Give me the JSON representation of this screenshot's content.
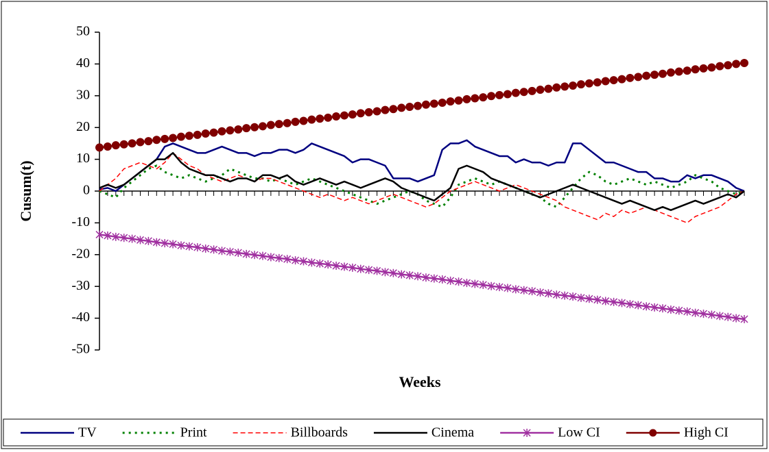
{
  "chart_data": {
    "type": "line",
    "ylabel": "Cusum(t)",
    "xlabel": "Weeks",
    "ylim": [
      -50,
      50
    ],
    "yticks": [
      -50,
      -40,
      -30,
      -20,
      -10,
      0,
      10,
      20,
      30,
      40,
      50
    ],
    "categories": [
      null,
      null,
      null,
      null,
      null,
      null,
      null,
      null,
      null,
      null,
      null,
      null,
      null,
      null,
      null,
      null,
      null,
      null,
      null,
      null,
      null,
      null,
      null,
      null,
      null,
      null,
      null,
      null,
      null,
      null,
      null,
      null,
      null,
      null,
      null,
      null,
      null,
      null,
      null,
      null,
      null,
      null,
      null,
      null,
      null,
      null,
      null,
      null,
      null,
      null,
      null,
      null,
      null,
      null,
      null,
      null,
      null,
      null,
      null,
      null,
      null,
      null,
      null,
      null,
      null,
      null,
      null,
      null,
      null,
      null,
      null,
      null,
      null,
      null,
      null,
      null,
      null,
      null,
      null,
      null
    ],
    "legend": "bottom",
    "series": [
      {
        "name": "TV",
        "color": "#000080",
        "dash": "solid",
        "marker": "none",
        "values": [
          0.5,
          1,
          0,
          2,
          4,
          6,
          8,
          10,
          14,
          15,
          14,
          13,
          12,
          12,
          13,
          14,
          13,
          12,
          12,
          11,
          12,
          12,
          13,
          13,
          12,
          13,
          15,
          14,
          13,
          12,
          11,
          9,
          10,
          10,
          9,
          8,
          4,
          4,
          4,
          3,
          4,
          5,
          13,
          15,
          15,
          16,
          14,
          13,
          12,
          11,
          11,
          9,
          10,
          9,
          9,
          8,
          9,
          9,
          15,
          15,
          13,
          11,
          9,
          9,
          8,
          7,
          6,
          6,
          4,
          4,
          3,
          3,
          5,
          4,
          5,
          5,
          4,
          3,
          1,
          0
        ]
      },
      {
        "name": "Print",
        "color": "#008000",
        "dash": "dotted",
        "marker": "none",
        "values": [
          0,
          -1,
          -2,
          1,
          3,
          5,
          7,
          8,
          6,
          5,
          4,
          5,
          4,
          3,
          4,
          5,
          7,
          6,
          5,
          4,
          4,
          3,
          4,
          3,
          2,
          3,
          4,
          3,
          2,
          1,
          0,
          -1,
          -2,
          -3,
          -4,
          -3,
          -2,
          -1,
          0,
          -1,
          -3,
          -4,
          -5,
          -2,
          2,
          3,
          4,
          3,
          2,
          3,
          2,
          1,
          0,
          -1,
          -2,
          -4,
          -5,
          -2,
          1,
          4,
          6,
          5,
          3,
          2,
          3,
          4,
          3,
          2,
          3,
          2,
          1,
          2,
          3,
          5,
          4,
          3,
          1,
          0,
          -1,
          0
        ]
      },
      {
        "name": "Billboards",
        "color": "#ff0000",
        "dash": "dashed",
        "marker": "none",
        "values": [
          0,
          2,
          4,
          7,
          8,
          9,
          8,
          7,
          9,
          12,
          10,
          8,
          7,
          5,
          4,
          3,
          4,
          5,
          4,
          3,
          4,
          4,
          3,
          2,
          1,
          0,
          -1,
          -2,
          -1,
          -2,
          -3,
          -2,
          -3,
          -4,
          -3,
          -2,
          -1,
          -2,
          -3,
          -4,
          -5,
          -4,
          -2,
          0,
          1,
          2,
          3,
          2,
          1,
          0,
          1,
          2,
          1,
          0,
          -1,
          -2,
          -3,
          -5,
          -6,
          -7,
          -8,
          -9,
          -7,
          -8,
          -6,
          -7,
          -6,
          -5,
          -6,
          -7,
          -8,
          -9,
          -10,
          -8,
          -7,
          -6,
          -5,
          -3,
          -1,
          0
        ]
      },
      {
        "name": "Cinema",
        "color": "#000000",
        "dash": "solid",
        "marker": "none",
        "values": [
          1,
          2,
          1,
          2,
          4,
          6,
          8,
          10,
          10,
          12,
          9,
          7,
          6,
          5,
          5,
          4,
          3,
          4,
          4,
          3,
          5,
          5,
          4,
          5,
          3,
          2,
          3,
          4,
          3,
          2,
          3,
          2,
          1,
          2,
          3,
          4,
          3,
          1,
          0,
          -1,
          -2,
          -3,
          -1,
          1,
          7,
          8,
          7,
          6,
          4,
          3,
          2,
          1,
          0,
          -1,
          -2,
          -1,
          0,
          1,
          2,
          1,
          0,
          -1,
          -2,
          -3,
          -4,
          -3,
          -4,
          -5,
          -6,
          -5,
          -6,
          -5,
          -4,
          -3,
          -4,
          -3,
          -2,
          -1,
          -2,
          0
        ]
      },
      {
        "name": "Low CI",
        "color": "#a030a0",
        "dash": "solid",
        "marker": "asterisk",
        "values": [
          -13.7,
          -14.0,
          -14.4,
          -14.7,
          -15.0,
          -15.4,
          -15.7,
          -16.1,
          -16.4,
          -16.7,
          -17.1,
          -17.4,
          -17.7,
          -18.1,
          -18.4,
          -18.8,
          -19.1,
          -19.4,
          -19.8,
          -20.1,
          -20.4,
          -20.8,
          -21.1,
          -21.4,
          -21.8,
          -22.1,
          -22.5,
          -22.8,
          -23.1,
          -23.5,
          -23.8,
          -24.1,
          -24.5,
          -24.8,
          -25.1,
          -25.5,
          -25.8,
          -26.2,
          -26.5,
          -26.8,
          -27.2,
          -27.5,
          -27.8,
          -28.2,
          -28.5,
          -28.9,
          -29.2,
          -29.5,
          -29.9,
          -30.2,
          -30.5,
          -30.9,
          -31.2,
          -31.5,
          -31.9,
          -32.2,
          -32.6,
          -32.9,
          -33.2,
          -33.6,
          -33.9,
          -34.2,
          -34.6,
          -34.9,
          -35.2,
          -35.6,
          -35.9,
          -36.3,
          -36.6,
          -36.9,
          -37.3,
          -37.6,
          -37.9,
          -38.3,
          -38.6,
          -38.9,
          -39.3,
          -39.6,
          -40.0,
          -40.3
        ]
      },
      {
        "name": "High CI",
        "color": "#800000",
        "dash": "solid",
        "marker": "circle",
        "values": [
          13.7,
          14.0,
          14.4,
          14.7,
          15.0,
          15.4,
          15.7,
          16.1,
          16.4,
          16.7,
          17.1,
          17.4,
          17.7,
          18.1,
          18.4,
          18.8,
          19.1,
          19.4,
          19.8,
          20.1,
          20.4,
          20.8,
          21.1,
          21.4,
          21.8,
          22.1,
          22.5,
          22.8,
          23.1,
          23.5,
          23.8,
          24.1,
          24.5,
          24.8,
          25.1,
          25.5,
          25.8,
          26.2,
          26.5,
          26.8,
          27.2,
          27.5,
          27.8,
          28.2,
          28.5,
          28.9,
          29.2,
          29.5,
          29.9,
          30.2,
          30.5,
          30.9,
          31.2,
          31.5,
          31.9,
          32.2,
          32.6,
          32.9,
          33.2,
          33.6,
          33.9,
          34.2,
          34.6,
          34.9,
          35.2,
          35.6,
          35.9,
          36.3,
          36.6,
          36.9,
          37.3,
          37.6,
          37.9,
          38.3,
          38.6,
          38.9,
          39.3,
          39.6,
          40.0,
          40.3
        ]
      }
    ]
  }
}
